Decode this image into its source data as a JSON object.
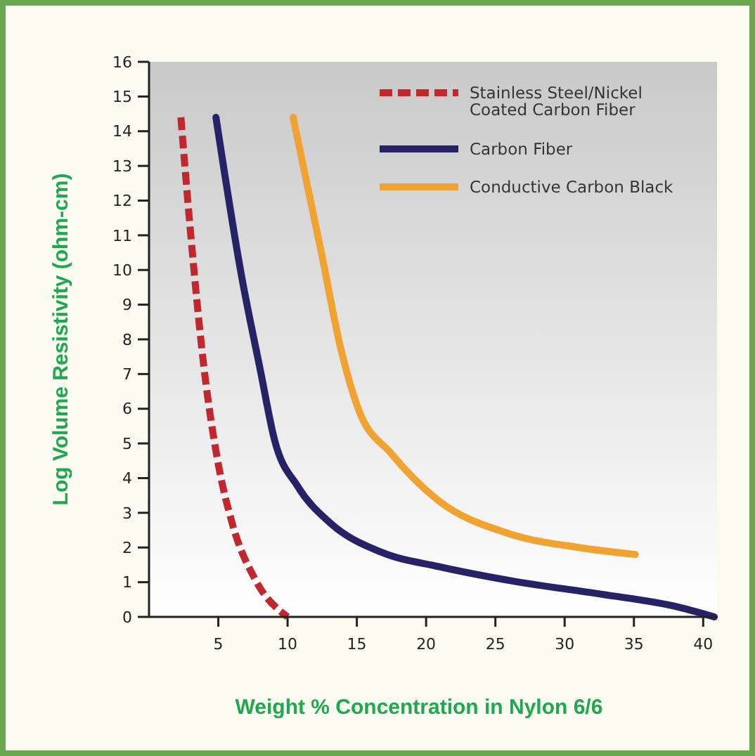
{
  "chart_data": {
    "type": "line",
    "xlabel": "Weight % Concentration in Nylon 6/6",
    "ylabel": "Log Volume Resistivity (ohm-cm)",
    "xlim": [
      0,
      41
    ],
    "xticks": [
      5,
      10,
      15,
      20,
      25,
      30,
      35,
      40
    ],
    "ylim": [
      0,
      16
    ],
    "yticks": [
      0,
      1,
      2,
      3,
      4,
      5,
      6,
      7,
      8,
      9,
      10,
      11,
      12,
      13,
      14,
      15,
      16
    ],
    "grid": false,
    "legend": "top right",
    "marker": "none",
    "series": [
      {
        "name": "Stainless Steel/Nickel Coated Carbon Fiber",
        "color": "#c0282d",
        "line_style": "dashed",
        "x": [
          2.3,
          2.97,
          3.99,
          5.0,
          6.0,
          7.7,
          10
        ],
        "values": [
          14.4,
          11.2,
          7.1,
          4.4,
          2.7,
          1.05,
          0
        ]
      },
      {
        "name": "Carbon Fiber",
        "color": "#262266",
        "line_style": "solid",
        "x": [
          4.83,
          6.69,
          8.04,
          9.06,
          10.75,
          13.1,
          16.8,
          20.9,
          26,
          32.7,
          37.8,
          40.8
        ],
        "values": [
          14.4,
          9.8,
          7.1,
          5.1,
          3.75,
          2.7,
          1.86,
          1.45,
          1.05,
          0.65,
          0.32,
          0
        ]
      },
      {
        "name": "Conductive Carbon Black",
        "color": "#f0a330",
        "line_style": "solid",
        "x": [
          10.4,
          12.44,
          13.8,
          15.1,
          17.5,
          20.9,
          25.97,
          31,
          35.1
        ],
        "values": [
          14.4,
          10.5,
          7.8,
          6.0,
          4.7,
          3.35,
          2.4,
          2.0,
          1.8
        ]
      }
    ]
  }
}
